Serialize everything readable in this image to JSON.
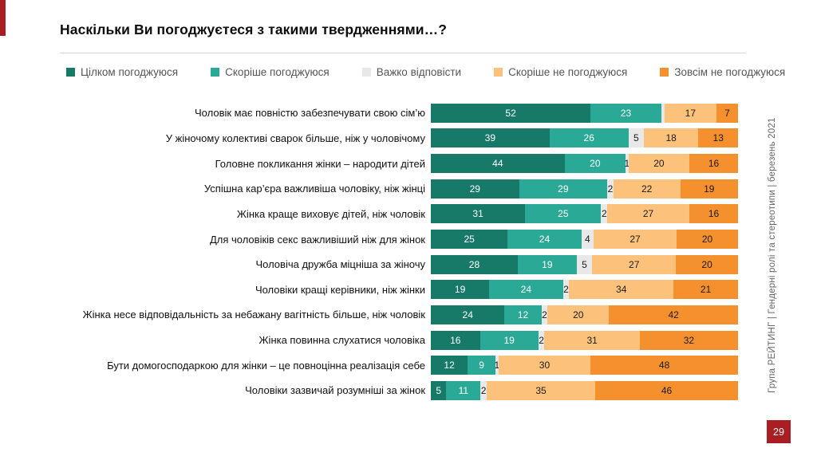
{
  "accent_color": "#a91e22",
  "chart_data": {
    "type": "bar",
    "variant": "horizontal-stacked-100",
    "title": "Наскільки Ви погоджуєтеся з такими твердженнями…?",
    "legend_position": "top",
    "axis": {
      "x_range_percent": [
        0,
        100
      ],
      "grid": false,
      "tick_labels": "none"
    },
    "series": [
      {
        "name": "Цілком погоджуюся",
        "color": "#177a68",
        "text_color": "#ffffff"
      },
      {
        "name": "Скоріше погоджуюся",
        "color": "#2aaa96",
        "text_color": "#ffffff"
      },
      {
        "name": "Важко відповісти",
        "color": "#e8e8e8",
        "text_color": "#1a1a1a"
      },
      {
        "name": "Скоріше не погоджуюся",
        "color": "#fcc27c",
        "text_color": "#1a1a1a"
      },
      {
        "name": "Зовсім не погоджуюся",
        "color": "#f5902f",
        "text_color": "#1a1a1a"
      }
    ],
    "rows": [
      {
        "label": "Чоловік має повністю забезпечувати свою сім’ю",
        "values": [
          52,
          23,
          1,
          17,
          7
        ],
        "display": [
          "52",
          "23",
          "",
          "17",
          "7"
        ]
      },
      {
        "label": "У жіночому колективі сварок більше, ніж у чоловічому",
        "values": [
          39,
          26,
          5,
          18,
          13
        ]
      },
      {
        "label": "Головне покликання жінки – народити дітей",
        "values": [
          44,
          20,
          1,
          20,
          16
        ]
      },
      {
        "label": "Успішна кар’єра важливіша чоловіку, ніж жінці",
        "values": [
          29,
          29,
          2,
          22,
          19
        ]
      },
      {
        "label": "Жінка краще виховує дітей, ніж чоловік",
        "values": [
          31,
          25,
          2,
          27,
          16
        ]
      },
      {
        "label": "Для чоловіків секс важливіший ніж для жінок",
        "values": [
          25,
          24,
          4,
          27,
          20
        ]
      },
      {
        "label": "Чоловіча дружба міцніша за жіночу",
        "values": [
          28,
          19,
          5,
          27,
          20
        ]
      },
      {
        "label": "Чоловіки кращі керівники, ніж жінки",
        "values": [
          19,
          24,
          2,
          34,
          21
        ]
      },
      {
        "label": "Жінка несе відповідальність за небажану вагітність більше, ніж чоловік",
        "values": [
          24,
          12,
          2,
          20,
          42
        ]
      },
      {
        "label": "Жінка повинна слухатися чоловіка",
        "values": [
          16,
          19,
          2,
          31,
          32
        ]
      },
      {
        "label": "Бути домогосподаркою для жінки – це повноцінна реалізація себе",
        "values": [
          12,
          9,
          1,
          30,
          48
        ]
      },
      {
        "label": "Чоловіки зазвичай розумніші за жінок",
        "values": [
          5,
          11,
          2,
          35,
          46
        ]
      }
    ]
  },
  "footer": {
    "source": "Група РЕЙТИНГ | Гендерні ролі та стереотипи | березень 2021",
    "page": "29"
  }
}
